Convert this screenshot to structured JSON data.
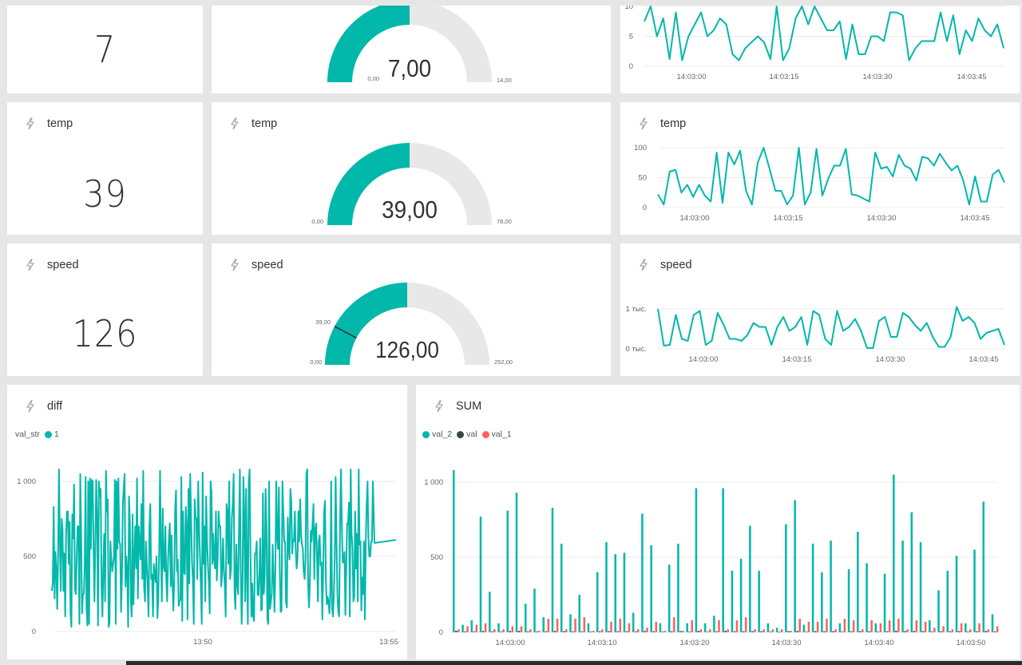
{
  "colors": {
    "teal": "#01b8aa",
    "dark": "#374649",
    "red": "#fd625e",
    "track": "#e8e8e8",
    "grid": "#ebebeb",
    "axis_text": "#666666"
  },
  "row1": {
    "card_value": "7",
    "gauge": {
      "value_label": "7,00",
      "min_label": "0,00",
      "max_label": "14,00",
      "fraction": 0.5
    },
    "line": {
      "y_ticks": [
        "10",
        "5",
        "0"
      ],
      "x_ticks": [
        "14:03:00",
        "14:03:15",
        "14:03:30",
        "14:03:45"
      ],
      "ylim": [
        0,
        10
      ],
      "values": [
        7.5,
        10,
        5,
        8,
        1.2,
        9,
        1,
        5,
        7,
        9,
        5,
        6,
        8,
        7,
        2,
        1,
        3,
        4,
        5,
        4,
        1.2,
        10,
        1,
        3,
        8,
        10,
        7,
        10,
        8,
        6,
        6,
        7.5,
        1.2,
        7,
        2,
        2,
        5,
        5,
        4.2,
        9,
        9,
        8.5,
        1,
        3,
        4.2,
        4.2,
        4.2,
        9,
        4.2,
        8.5,
        2,
        6,
        4.2,
        8,
        6,
        5,
        7,
        3
      ]
    }
  },
  "row2": {
    "card_title": "temp",
    "card_value": "39",
    "gauge": {
      "title": "temp",
      "value_label": "39,00",
      "min_label": "0,00",
      "max_label": "78,00",
      "fraction": 0.5
    },
    "line": {
      "title": "temp",
      "y_ticks": [
        "100",
        "50",
        "0"
      ],
      "x_ticks": [
        "14:03:00",
        "14:03:15",
        "14:03:30",
        "14:03:45"
      ],
      "ylim": [
        0,
        100
      ],
      "values": [
        22,
        5,
        60,
        63,
        25,
        38,
        18,
        38,
        20,
        10,
        92,
        8,
        92,
        72,
        95,
        28,
        5,
        75,
        100,
        65,
        28,
        28,
        5,
        20,
        100,
        5,
        25,
        98,
        20,
        48,
        70,
        70,
        98,
        22,
        20,
        15,
        10,
        92,
        65,
        68,
        52,
        88,
        70,
        65,
        45,
        85,
        82,
        70,
        90,
        75,
        62,
        70,
        45,
        5,
        52,
        10,
        10,
        55,
        63,
        42
      ]
    }
  },
  "row3": {
    "card_title": "speed",
    "card_value": "126",
    "gauge": {
      "title": "speed",
      "value_label": "126,00",
      "min_label": "0,00",
      "max_label": "252,00",
      "target_label": "39,00",
      "fraction": 0.5,
      "target_fraction": 0.155
    },
    "line": {
      "title": "speed",
      "y_ticks": [
        "1 тыс.",
        "0 тыс."
      ],
      "x_ticks": [
        "14:03:00",
        "14:03:15",
        "14:03:30",
        "14:03:45"
      ],
      "ylim": [
        0,
        1000
      ],
      "values": [
        1000,
        80,
        100,
        850,
        250,
        200,
        850,
        950,
        100,
        200,
        900,
        600,
        250,
        250,
        200,
        350,
        650,
        550,
        550,
        100,
        550,
        800,
        450,
        550,
        800,
        100,
        950,
        850,
        250,
        100,
        950,
        450,
        550,
        750,
        450,
        20,
        20,
        700,
        800,
        300,
        300,
        900,
        800,
        600,
        450,
        650,
        300,
        50,
        50,
        300,
        1050,
        700,
        800,
        650,
        250,
        400,
        450,
        500,
        100
      ]
    }
  },
  "diff": {
    "title": "diff",
    "legend_title": "val_str",
    "legend_series": "1",
    "y_ticks": [
      "1 000",
      "500",
      "0"
    ],
    "x_ticks": [
      "13:50",
      "13:55"
    ],
    "ylim": [
      0,
      1000
    ],
    "values": [
      270,
      330,
      830,
      220,
      530,
      420,
      150,
      500,
      1080,
      600,
      270,
      750,
      680,
      270,
      520,
      100,
      650,
      800,
      800,
      450,
      730,
      120,
      30,
      780,
      620,
      980,
      280,
      250,
      500,
      700,
      700,
      50,
      1050,
      650,
      120,
      250,
      250,
      430,
      1030,
      170,
      40,
      1000,
      50,
      1020,
      550,
      1010,
      1000,
      550,
      200,
      600,
      1010,
      750,
      40,
      1000,
      900,
      950,
      300,
      100,
      430,
      650,
      200,
      1070,
      800,
      880,
      30,
      60,
      600,
      480,
      400,
      450,
      500,
      1010,
      50,
      1000,
      550,
      1020,
      600,
      580,
      130,
      350,
      850,
      950,
      1050,
      300,
      500,
      400,
      30,
      900,
      720,
      200,
      100,
      780,
      180,
      480,
      700,
      420,
      1020,
      220,
      700,
      570,
      480,
      850,
      350,
      1070,
      300,
      200,
      600,
      450,
      300,
      100,
      700,
      850,
      350,
      380,
      100,
      450,
      380,
      330,
      500,
      90,
      220,
      540,
      1070,
      530,
      200,
      820,
      440,
      400,
      700,
      350,
      200,
      470,
      630,
      720,
      300,
      640,
      320,
      140,
      350,
      820,
      940,
      400,
      480,
      170,
      200,
      210,
      1030,
      70,
      800,
      400,
      380,
      830,
      700,
      80,
      950,
      320,
      1050,
      750,
      470,
      350,
      50,
      880,
      760,
      750,
      350,
      1000,
      700,
      500,
      300,
      50,
      1060,
      450,
      700,
      200,
      900,
      600,
      450,
      320,
      120,
      1000,
      930,
      450,
      650,
      480,
      420,
      800,
      340,
      480,
      800,
      700,
      700,
      300,
      380,
      620,
      420,
      300,
      100,
      850,
      800,
      450,
      1000,
      350,
      420,
      760,
      850,
      1050,
      250,
      150,
      580,
      320,
      250,
      680,
      1080,
      420,
      50,
      290,
      1030,
      780,
      200,
      950,
      400,
      50,
      1000,
      1080,
      500,
      100,
      320,
      100,
      70,
      520,
      520,
      600,
      250,
      240,
      380,
      620,
      140,
      150,
      920,
      250,
      380,
      950,
      700,
      80,
      50,
      1000,
      150,
      200,
      250,
      580,
      370,
      130,
      400,
      1000,
      630,
      550,
      960,
      420,
      130,
      140,
      1000,
      800,
      600,
      600,
      200,
      160,
      760,
      560,
      480,
      950,
      870,
      520,
      610,
      600,
      800,
      550,
      420,
      480,
      800,
      600,
      880,
      650,
      580,
      550,
      400,
      350,
      480,
      1050,
      1080,
      300,
      160,
      340,
      670,
      600,
      720,
      850,
      350,
      680,
      720,
      500,
      200,
      600,
      640,
      440,
      460,
      80,
      420,
      800,
      870,
      350,
      180,
      230,
      200,
      120,
      260,
      1000,
      150,
      100,
      250,
      480,
      1030,
      620,
      240,
      130,
      100,
      720,
      1080,
      720,
      460,
      460,
      530,
      110,
      430,
      720,
      720,
      860,
      100,
      1080,
      650,
      560,
      200,
      230,
      800,
      420,
      650,
      200,
      1080,
      580,
      600,
      140,
      360,
      250,
      600,
      80,
      600,
      850,
      1000,
      620,
      500,
      500,
      600,
      600,
      1000,
      590,
      610
    ]
  },
  "sum": {
    "title": "SUM",
    "legend": [
      "val_2",
      "val",
      "val_1"
    ],
    "y_ticks": [
      "1 000",
      "500",
      "0"
    ],
    "x_ticks": [
      "14:03:00",
      "14:03:10",
      "14:03:20",
      "14:03:30",
      "14:03:40",
      "14:03:50"
    ],
    "ylim": [
      0,
      1000
    ],
    "val_2": [
      1080,
      50,
      80,
      770,
      270,
      60,
      810,
      930,
      190,
      290,
      100,
      830,
      590,
      120,
      250,
      60,
      400,
      600,
      520,
      530,
      130,
      790,
      580,
      60,
      450,
      590,
      60,
      960,
      60,
      110,
      960,
      410,
      490,
      710,
      410,
      60,
      30,
      720,
      880,
      50,
      590,
      400,
      610,
      60,
      420,
      670,
      460,
      60,
      390,
      1050,
      610,
      800,
      600,
      80,
      280,
      410,
      510,
      60,
      550,
      870,
      120
    ],
    "val": [
      10,
      5,
      5,
      8,
      5,
      4,
      8,
      9,
      5,
      5,
      6,
      8,
      7,
      5,
      5,
      4,
      6,
      7,
      6,
      6,
      5,
      8,
      6,
      4,
      6,
      7,
      4,
      9,
      4,
      5,
      9,
      6,
      6,
      7,
      6,
      4,
      3,
      7,
      8,
      4,
      7,
      6,
      7,
      4,
      6,
      7,
      6,
      4,
      6,
      9,
      7,
      8,
      7,
      4,
      6,
      6,
      7,
      4,
      6,
      8,
      5
    ],
    "val_1": [
      20,
      40,
      50,
      60,
      20,
      20,
      40,
      40,
      20,
      10,
      90,
      90,
      20,
      90,
      100,
      10,
      20,
      70,
      90,
      60,
      20,
      30,
      70,
      10,
      100,
      10,
      80,
      20,
      20,
      80,
      20,
      80,
      100,
      20,
      20,
      20,
      20,
      10,
      90,
      70,
      70,
      90,
      20,
      90,
      80,
      20,
      80,
      60,
      80,
      90,
      20,
      80,
      70,
      30,
      40,
      20,
      60,
      20,
      60,
      20,
      40
    ]
  }
}
